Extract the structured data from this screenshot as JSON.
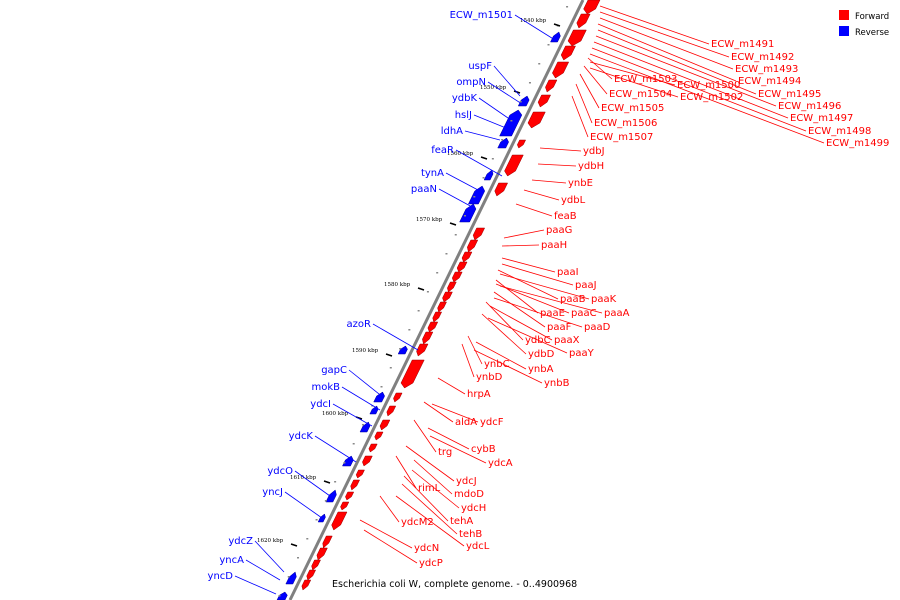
{
  "caption": "Escherichia coli W, complete genome. - 0..4900968",
  "colors": {
    "forward": "#ff0000",
    "reverse": "#0000ff",
    "axis": "#808080"
  },
  "legend": [
    {
      "label": "Forward",
      "strand": "forward"
    },
    {
      "label": "Reverse",
      "strand": "reverse"
    }
  ],
  "ticks": [
    "1540 kbp",
    "1550 kbp",
    "1560 kbp",
    "1570 kbp",
    "1580 kbp",
    "1590 kbp",
    "1600 kbp",
    "1610 kbp",
    "1620 kbp"
  ],
  "reverse_labels": [
    "ECW_m1501",
    "uspF",
    "ompN",
    "ydbK",
    "hslJ",
    "ldhA",
    "feaR",
    "tynA",
    "paaN",
    "azoR",
    "gapC",
    "mokB",
    "ydcI",
    "ydcK",
    "ydcO",
    "yncJ",
    "ydcZ",
    "yncA",
    "yncD"
  ],
  "forward_labels": [
    "ECW_m1491",
    "ECW_m1492",
    "ECW_m1493",
    "ECW_m1494",
    "ECW_m1495",
    "ECW_m1496",
    "ECW_m1497",
    "ECW_m1498",
    "ECW_m1499",
    "ECW_m1503",
    "ECW_m1500",
    "ECW_m1504",
    "ECW_m1502",
    "ECW_m1505",
    "ECW_m1506",
    "ECW_m1507",
    "ydbJ",
    "ydbH",
    "ynbE",
    "ydbL",
    "feaB",
    "paaG",
    "paaH",
    "paaI",
    "paaJ",
    "paaB",
    "paaK",
    "paaE",
    "paaC",
    "paaA",
    "paaF",
    "paaD",
    "ydbC",
    "paaX",
    "ydbD",
    "paaY",
    "ynbC",
    "ynbA",
    "ynbD",
    "ynbB",
    "hrpA",
    "aldA",
    "ydcF",
    "trg",
    "cybB",
    "ydcA",
    "ydcJ",
    "rimL",
    "mdoD",
    "ydcH",
    "tehA",
    "ydcM2",
    "tehB",
    "ydcL",
    "ydcN",
    "ydcP"
  ]
}
